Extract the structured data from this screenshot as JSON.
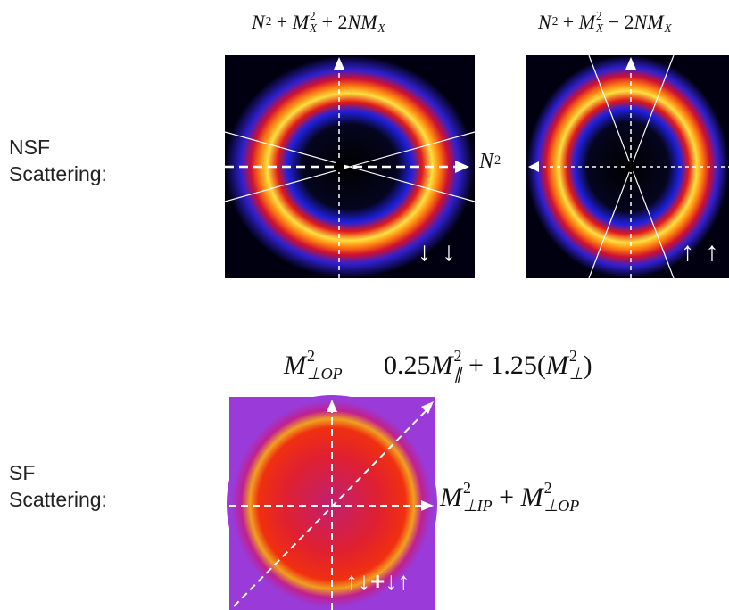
{
  "labels": {
    "nsf": [
      "NSF",
      "Scattering:"
    ],
    "sf": [
      "SF",
      "Scattering:"
    ]
  },
  "formulas": {
    "nsf_down": [
      {
        "base": "N",
        "sup": "2"
      },
      {
        "op": "+"
      },
      {
        "base": "M",
        "sup": "2",
        "sub": "X"
      },
      {
        "op": "+"
      },
      {
        "text": "2"
      },
      {
        "base": "NM",
        "sub": "X"
      }
    ],
    "nsf_up": [
      {
        "base": "N",
        "sup": "2"
      },
      {
        "op": "+"
      },
      {
        "base": "M",
        "sup": "2",
        "sub": "X"
      },
      {
        "op": "−"
      },
      {
        "text": "2"
      },
      {
        "base": "NM",
        "sub": "X"
      }
    ],
    "n2": [
      {
        "base": "N",
        "sup": "2"
      }
    ],
    "sf_op": [
      {
        "base": "M",
        "sup": "2",
        "sub": "⊥OP"
      }
    ],
    "sf_mix": [
      {
        "text": "0.25"
      },
      {
        "base": "M",
        "sup": "2",
        "sub": "∥"
      },
      {
        "op": "+"
      },
      {
        "text": "1.25("
      },
      {
        "base": "M",
        "sup": "2",
        "sub": "⊥"
      },
      {
        "text": ")"
      }
    ],
    "sf_ip": [
      {
        "base": "M",
        "sup": "2",
        "sub": "⊥IP"
      },
      {
        "op": "+"
      },
      {
        "base": "M",
        "sup": "2",
        "sub": "⊥OP"
      }
    ]
  },
  "spins": {
    "down": "↓ ↓",
    "up": "↑ ↑",
    "mixed": "↑↓+↓↑"
  }
}
